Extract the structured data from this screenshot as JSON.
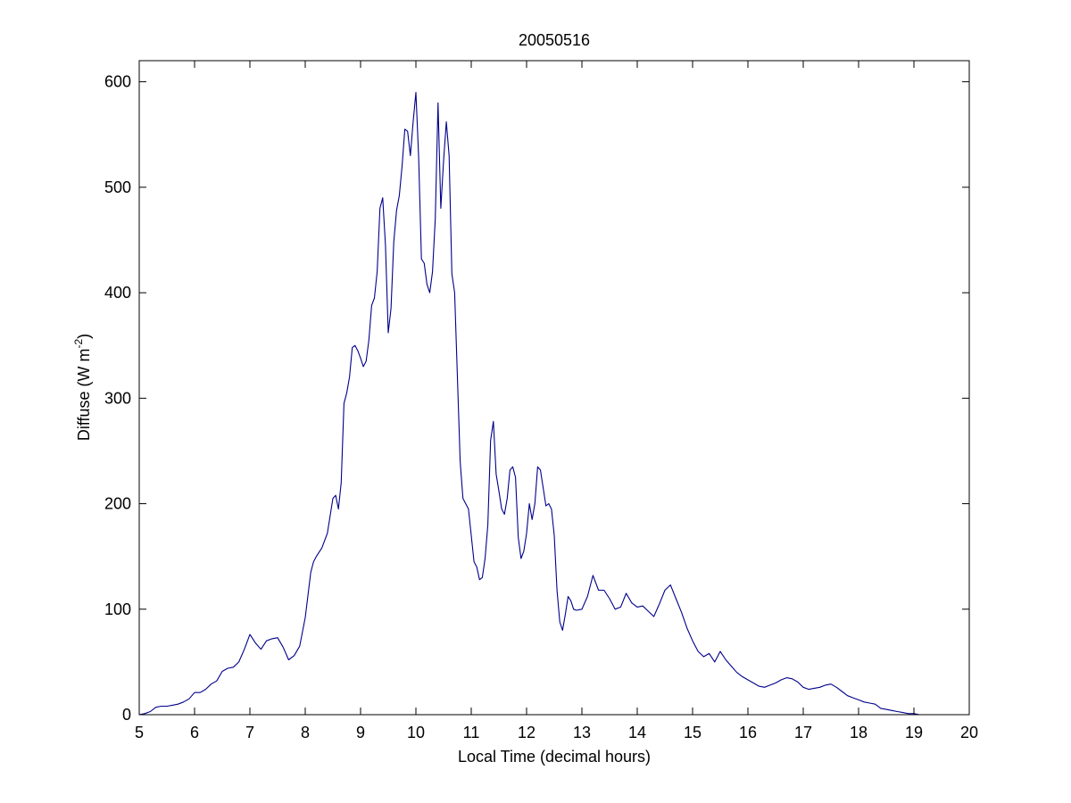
{
  "chart_data": {
    "type": "line",
    "title": "20050516",
    "xlabel": "Local Time (decimal hours)",
    "ylabel": "Diffuse (W m",
    "ylabel_superscript": "-2",
    "ylabel_suffix": ")",
    "xlim": [
      5,
      20
    ],
    "ylim": [
      0,
      620
    ],
    "xticks": [
      5,
      6,
      7,
      8,
      9,
      10,
      11,
      12,
      13,
      14,
      15,
      16,
      17,
      18,
      19,
      20
    ],
    "yticks": [
      0,
      100,
      200,
      300,
      400,
      500,
      600
    ],
    "grid": false,
    "legend": "none",
    "series": [
      {
        "color": "#00008b",
        "x": [
          5.0,
          5.1,
          5.2,
          5.3,
          5.4,
          5.5,
          5.6,
          5.7,
          5.8,
          5.9,
          6.0,
          6.1,
          6.2,
          6.3,
          6.4,
          6.5,
          6.6,
          6.7,
          6.8,
          6.9,
          7.0,
          7.1,
          7.2,
          7.3,
          7.4,
          7.5,
          7.6,
          7.7,
          7.8,
          7.9,
          8.0,
          8.1,
          8.15,
          8.2,
          8.3,
          8.4,
          8.5,
          8.55,
          8.6,
          8.65,
          8.7,
          8.75,
          8.8,
          8.85,
          8.9,
          8.95,
          9.0,
          9.05,
          9.1,
          9.15,
          9.2,
          9.25,
          9.3,
          9.35,
          9.4,
          9.45,
          9.5,
          9.55,
          9.6,
          9.65,
          9.7,
          9.75,
          9.8,
          9.85,
          9.9,
          9.95,
          10.0,
          10.05,
          10.1,
          10.15,
          10.2,
          10.25,
          10.3,
          10.35,
          10.4,
          10.45,
          10.5,
          10.55,
          10.6,
          10.65,
          10.7,
          10.75,
          10.8,
          10.85,
          10.9,
          10.95,
          11.0,
          11.05,
          11.1,
          11.15,
          11.2,
          11.25,
          11.3,
          11.35,
          11.4,
          11.45,
          11.5,
          11.55,
          11.6,
          11.65,
          11.7,
          11.75,
          11.8,
          11.85,
          11.9,
          11.95,
          12.0,
          12.05,
          12.1,
          12.15,
          12.2,
          12.25,
          12.3,
          12.35,
          12.4,
          12.45,
          12.5,
          12.55,
          12.6,
          12.65,
          12.7,
          12.75,
          12.8,
          12.85,
          12.9,
          13.0,
          13.1,
          13.2,
          13.3,
          13.4,
          13.5,
          13.6,
          13.7,
          13.8,
          13.9,
          14.0,
          14.1,
          14.2,
          14.3,
          14.4,
          14.5,
          14.6,
          14.7,
          14.8,
          14.9,
          15.0,
          15.1,
          15.2,
          15.3,
          15.4,
          15.5,
          15.6,
          15.7,
          15.8,
          15.9,
          16.0,
          16.1,
          16.2,
          16.3,
          16.4,
          16.5,
          16.6,
          16.7,
          16.8,
          16.9,
          17.0,
          17.1,
          17.2,
          17.3,
          17.4,
          17.5,
          17.6,
          17.7,
          17.8,
          17.9,
          18.0,
          18.1,
          18.2,
          18.3,
          18.4,
          18.5,
          18.6,
          18.7,
          18.8,
          18.9,
          19.0,
          19.1,
          19.15
        ],
        "y": [
          0,
          1,
          3,
          7,
          8,
          8,
          9,
          10,
          12,
          15,
          21,
          21,
          24,
          29,
          32,
          41,
          44,
          45,
          50,
          62,
          76,
          68,
          62,
          70,
          72,
          73,
          64,
          52,
          56,
          65,
          92,
          135,
          145,
          150,
          158,
          172,
          205,
          208,
          195,
          220,
          295,
          305,
          320,
          348,
          350,
          345,
          338,
          330,
          335,
          355,
          388,
          395,
          420,
          480,
          490,
          445,
          362,
          385,
          448,
          478,
          492,
          520,
          555,
          553,
          530,
          562,
          590,
          528,
          432,
          428,
          408,
          400,
          420,
          470,
          580,
          480,
          525,
          562,
          530,
          418,
          400,
          320,
          240,
          205,
          200,
          195,
          170,
          145,
          140,
          128,
          130,
          148,
          180,
          260,
          278,
          228,
          212,
          195,
          190,
          205,
          232,
          235,
          225,
          168,
          148,
          155,
          172,
          200,
          185,
          200,
          235,
          232,
          215,
          198,
          200,
          195,
          170,
          118,
          88,
          80,
          95,
          112,
          108,
          100,
          99,
          100,
          112,
          132,
          118,
          118,
          110,
          100,
          102,
          115,
          106,
          102,
          103,
          98,
          93,
          105,
          118,
          123,
          110,
          97,
          82,
          70,
          60,
          55,
          58,
          50,
          60,
          52,
          46,
          40,
          36,
          33,
          30,
          27,
          26,
          28,
          30,
          33,
          35,
          34,
          31,
          26,
          24,
          25,
          26,
          28,
          29,
          26,
          22,
          18,
          16,
          14,
          12,
          11,
          10,
          6,
          5,
          4,
          3,
          2,
          1,
          1,
          0,
          0
        ]
      }
    ]
  }
}
